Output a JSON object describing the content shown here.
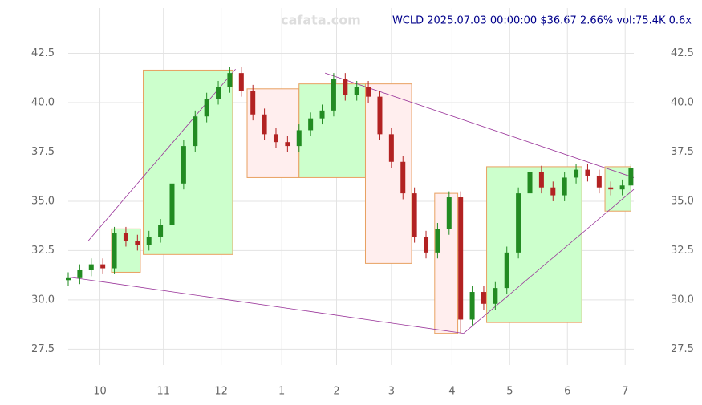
{
  "chart_data": {
    "type": "candlestick",
    "title": "WCLD 2025.07.03 00:00:00 $36.67 2.66% vol:75.4K 0.6x",
    "watermark": "cafata.com",
    "x": [
      0,
      4,
      8,
      12,
      16,
      20,
      24,
      28,
      32,
      36,
      40,
      44,
      48,
      52,
      56,
      60,
      64,
      68,
      72,
      76,
      80,
      84,
      88,
      92,
      96,
      100,
      104,
      108,
      112,
      116,
      120,
      124,
      128,
      132,
      136,
      140,
      144,
      148,
      152,
      156,
      160,
      164,
      168,
      172,
      176,
      180,
      184,
      188,
      192,
      195
    ],
    "open": [
      31.0,
      31.1,
      31.5,
      31.8,
      31.6,
      33.4,
      33.0,
      32.8,
      33.2,
      33.8,
      35.9,
      37.8,
      39.3,
      40.2,
      40.8,
      41.5,
      40.6,
      39.4,
      38.4,
      38.0,
      37.8,
      38.6,
      39.2,
      39.6,
      41.2,
      40.4,
      40.8,
      40.3,
      38.4,
      37.0,
      35.4,
      33.2,
      32.4,
      33.6,
      35.2,
      29.0,
      30.4,
      29.8,
      30.6,
      32.4,
      35.4,
      36.5,
      35.7,
      35.3,
      36.2,
      36.6,
      36.3,
      35.7,
      35.6,
      35.8
    ],
    "high": [
      31.4,
      31.8,
      32.1,
      32.1,
      33.7,
      33.7,
      33.3,
      33.5,
      34.1,
      36.2,
      38.1,
      39.6,
      40.5,
      41.1,
      41.8,
      41.8,
      40.9,
      39.7,
      38.7,
      38.3,
      38.9,
      39.5,
      39.9,
      41.5,
      41.5,
      41.1,
      41.1,
      40.6,
      38.7,
      37.3,
      35.7,
      33.5,
      33.9,
      35.5,
      35.5,
      30.7,
      30.7,
      30.9,
      32.7,
      35.7,
      36.8,
      36.8,
      36.0,
      36.5,
      36.9,
      36.9,
      36.6,
      36.0,
      36.1,
      36.9
    ],
    "low": [
      30.7,
      30.8,
      31.2,
      31.3,
      31.3,
      32.7,
      32.5,
      32.5,
      32.9,
      33.5,
      35.6,
      37.5,
      39.0,
      39.9,
      40.5,
      40.3,
      39.1,
      38.1,
      37.7,
      37.5,
      37.5,
      38.3,
      38.9,
      39.3,
      40.1,
      40.1,
      40.0,
      38.1,
      36.7,
      35.1,
      32.9,
      32.1,
      32.1,
      33.3,
      28.3,
      28.7,
      29.5,
      29.5,
      30.3,
      32.1,
      35.1,
      35.4,
      35.0,
      35.0,
      35.9,
      36.0,
      35.4,
      35.3,
      35.3,
      35.5
    ],
    "close": [
      31.1,
      31.5,
      31.8,
      31.6,
      33.4,
      33.0,
      32.8,
      33.2,
      33.8,
      35.9,
      37.8,
      39.3,
      40.2,
      40.8,
      41.5,
      40.6,
      39.4,
      38.4,
      38.0,
      37.8,
      38.6,
      39.2,
      39.6,
      41.2,
      40.4,
      40.8,
      40.3,
      38.4,
      37.0,
      35.4,
      33.2,
      32.4,
      33.6,
      35.2,
      29.0,
      30.4,
      29.8,
      30.6,
      32.4,
      35.4,
      36.5,
      35.7,
      35.3,
      36.2,
      36.6,
      36.3,
      35.7,
      35.6,
      35.8,
      36.67
    ],
    "up_color": "#228b22",
    "down_color": "#b22222",
    "zones": [
      {
        "x": [
          15,
          25
        ],
        "range": [
          31.4,
          33.6
        ],
        "color": "#ccffcc"
      },
      {
        "x": [
          26,
          57
        ],
        "range": [
          32.3,
          41.65
        ],
        "color": "#ccffcc"
      },
      {
        "x": [
          62,
          80
        ],
        "range": [
          36.2,
          40.7
        ],
        "color": "#ffeeee"
      },
      {
        "x": [
          80,
          103
        ],
        "range": [
          36.2,
          40.95
        ],
        "color": "#ccffcc"
      },
      {
        "x": [
          103,
          119
        ],
        "range": [
          31.85,
          40.95
        ],
        "color": "#ffeeee"
      },
      {
        "x": [
          127,
          135
        ],
        "range": [
          28.3,
          35.4
        ],
        "color": "#ffeeee"
      },
      {
        "x": [
          145,
          178
        ],
        "range": [
          28.85,
          36.75
        ],
        "color": "#ccffcc"
      },
      {
        "x": [
          186,
          195
        ],
        "range": [
          34.5,
          36.75
        ],
        "color": "#ccffcc"
      }
    ],
    "trendlines": [
      {
        "x": [
          0,
          137
        ],
        "y": [
          31.16,
          28.3
        ]
      },
      {
        "x": [
          7,
          58
        ],
        "y": [
          33.0,
          41.7
        ]
      },
      {
        "x": [
          89,
          196
        ],
        "y": [
          41.5,
          36.2
        ]
      },
      {
        "x": [
          137,
          196
        ],
        "y": [
          28.3,
          35.6
        ]
      }
    ],
    "xlim": [
      0,
      196
    ],
    "ylim": [
      26.7,
      44.8
    ],
    "xticks": [
      {
        "value": 11,
        "label": "10"
      },
      {
        "value": 33,
        "label": "11"
      },
      {
        "value": 53,
        "label": "12"
      },
      {
        "value": 74,
        "label": "1"
      },
      {
        "value": 93,
        "label": "2"
      },
      {
        "value": 112,
        "label": "3"
      },
      {
        "value": 133,
        "label": "4"
      },
      {
        "value": 153,
        "label": "5"
      },
      {
        "value": 173,
        "label": "6"
      },
      {
        "value": 193,
        "label": "7"
      }
    ],
    "yticks": [
      {
        "value": 27.5,
        "label": "27.5"
      },
      {
        "value": 30,
        "label": "30.0"
      },
      {
        "value": 32.5,
        "label": "32.5"
      },
      {
        "value": 35,
        "label": "35.0"
      },
      {
        "value": 37.5,
        "label": "37.5"
      },
      {
        "value": 40,
        "label": "40.0"
      },
      {
        "value": 42.5,
        "label": "42.5"
      }
    ],
    "grid": true
  }
}
